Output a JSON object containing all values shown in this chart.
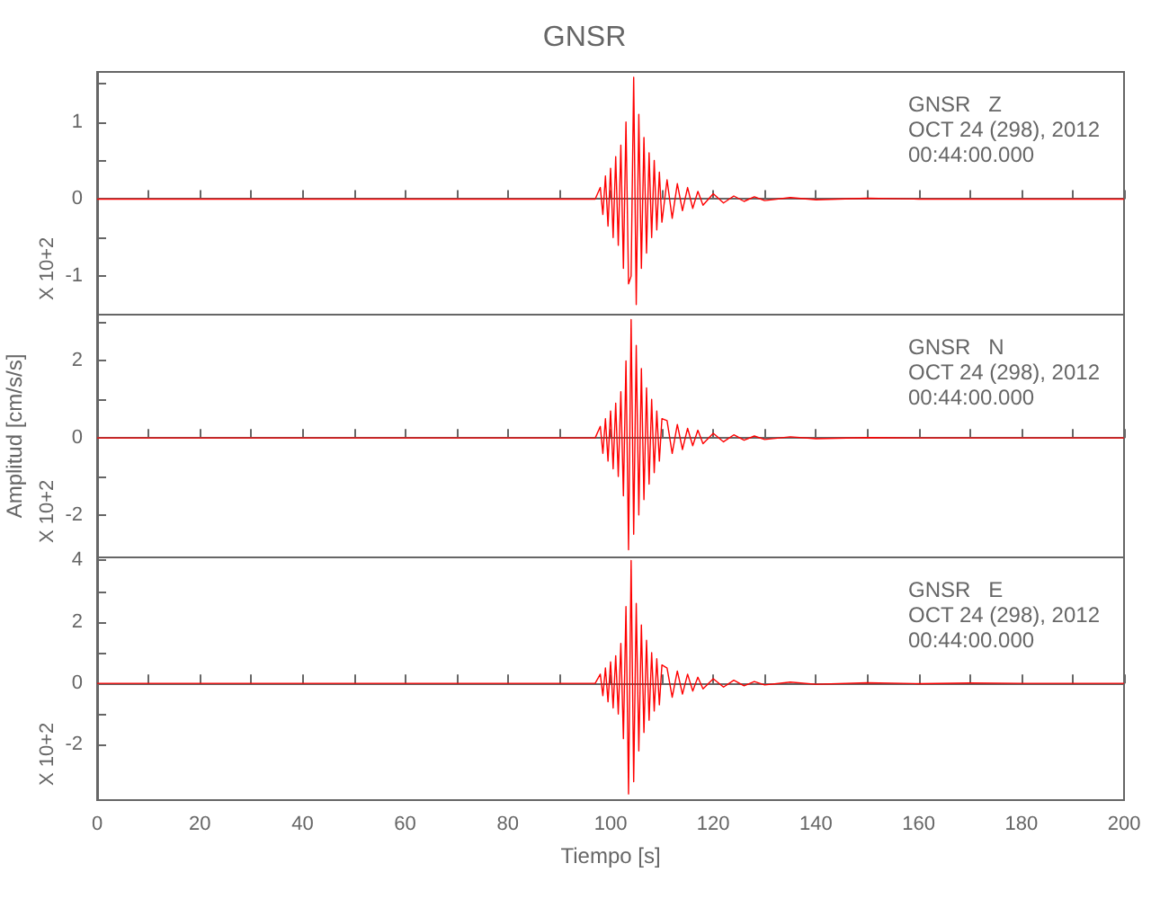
{
  "chart_data": [
    {
      "type": "line",
      "title": "GNSR",
      "annotations": [
        "X 10+2",
        "GNSR   Z",
        "OCT 24 (298), 2012",
        "00:44:00.000"
      ],
      "tick_labels": "y",
      "xlim": [
        0,
        200
      ],
      "xticks": [
        0,
        {
          "value": 10,
          "label": null
        },
        20,
        {
          "value": 30,
          "label": null
        },
        40,
        {
          "value": 50,
          "label": null
        },
        60,
        {
          "value": 70,
          "label": null
        },
        80,
        {
          "value": 90,
          "label": null
        },
        100,
        {
          "value": 110,
          "label": null
        },
        120,
        {
          "value": 130,
          "label": null
        },
        140,
        {
          "value": 150,
          "label": null
        },
        160,
        {
          "value": 170,
          "label": null
        },
        180,
        {
          "value": 190,
          "label": null
        },
        200
      ],
      "ylim": [
        -1.5,
        1.65
      ],
      "yticks": [
        -1,
        {
          "value": -0.5,
          "label": null
        },
        0,
        {
          "value": 0.5,
          "label": null
        },
        1,
        {
          "value": 1.5,
          "label": null
        }
      ],
      "x": [
        0,
        50,
        97,
        98,
        98.5,
        99,
        99.5,
        100,
        100.5,
        101,
        101.5,
        102,
        102.5,
        103,
        103.5,
        104,
        104.5,
        105,
        105.5,
        106,
        106.5,
        107,
        107.5,
        108,
        108.5,
        109,
        109.5,
        110,
        111,
        112,
        113,
        114,
        115,
        116,
        117,
        118,
        120,
        122,
        124,
        126,
        128,
        130,
        135,
        140,
        150,
        160,
        170,
        180,
        190,
        200
      ],
      "series": [
        {
          "color": "#ff0000",
          "values": [
            0,
            0,
            0,
            0.15,
            -0.2,
            0.3,
            -0.35,
            0.4,
            -0.5,
            0.55,
            -0.6,
            0.7,
            -0.9,
            1.0,
            -1.1,
            -1.0,
            1.58,
            -1.37,
            1.1,
            -0.9,
            0.8,
            -0.7,
            0.6,
            -0.5,
            0.5,
            -0.4,
            0.35,
            -0.3,
            0.25,
            -0.25,
            0.2,
            -0.15,
            0.15,
            -0.12,
            0.1,
            -0.08,
            0.07,
            -0.05,
            0.04,
            -0.03,
            0.03,
            -0.02,
            0.02,
            -0.01,
            0.01,
            0,
            0,
            0,
            0,
            0
          ]
        }
      ]
    },
    {
      "type": "line",
      "ylabel": "Amplitud [cm/s/s]",
      "annotations": [
        "X 10+2",
        "GNSR   N",
        "OCT 24 (298), 2012",
        "00:44:00.000"
      ],
      "tick_labels": "y",
      "xlim": [
        0,
        200
      ],
      "xticks": [
        0,
        {
          "value": 10,
          "label": null
        },
        20,
        {
          "value": 30,
          "label": null
        },
        40,
        {
          "value": 50,
          "label": null
        },
        60,
        {
          "value": 70,
          "label": null
        },
        80,
        {
          "value": 90,
          "label": null
        },
        100,
        {
          "value": 110,
          "label": null
        },
        120,
        {
          "value": 130,
          "label": null
        },
        140,
        {
          "value": 150,
          "label": null
        },
        160,
        {
          "value": 170,
          "label": null
        },
        180,
        {
          "value": 190,
          "label": null
        },
        200
      ],
      "ylim": [
        -3.1,
        3.2
      ],
      "yticks": [
        -2,
        {
          "value": -1,
          "label": null
        },
        0,
        {
          "value": 1,
          "label": null
        },
        2,
        {
          "value": 3,
          "label": null
        }
      ],
      "x": [
        0,
        50,
        97,
        98,
        98.5,
        99,
        99.5,
        100,
        100.5,
        101,
        101.5,
        102,
        102.5,
        103,
        103.5,
        104,
        104.5,
        105,
        105.5,
        106,
        106.5,
        107,
        107.5,
        108,
        108.5,
        109,
        109.5,
        110,
        111,
        112,
        113,
        114,
        115,
        116,
        117,
        118,
        120,
        122,
        124,
        126,
        128,
        130,
        135,
        140,
        150,
        160,
        170,
        180,
        190,
        200
      ],
      "series": [
        {
          "color": "#ff0000",
          "values": [
            0,
            0,
            0,
            0.3,
            -0.4,
            0.5,
            -0.6,
            0.7,
            -0.8,
            0.9,
            -1.0,
            1.2,
            -1.5,
            2.0,
            -2.9,
            3.07,
            -2.5,
            2.4,
            -2.0,
            1.8,
            -1.6,
            1.3,
            -1.2,
            1.0,
            -0.9,
            0.7,
            -0.6,
            0.5,
            0.45,
            -0.4,
            0.35,
            -0.3,
            0.25,
            -0.2,
            0.2,
            -0.15,
            0.12,
            -0.1,
            0.08,
            -0.06,
            0.05,
            -0.04,
            0.03,
            -0.02,
            0.01,
            0,
            0,
            0,
            0,
            0
          ]
        }
      ]
    },
    {
      "type": "line",
      "xlabel": "Tiempo [s]",
      "annotations": [
        "X 10+2",
        "GNSR   E",
        "OCT 24 (298), 2012",
        "00:44:00.000"
      ],
      "xlim": [
        0,
        200
      ],
      "xticks": [
        0,
        {
          "value": 10,
          "label": null
        },
        20,
        {
          "value": 30,
          "label": null
        },
        40,
        {
          "value": 50,
          "label": null
        },
        60,
        {
          "value": 70,
          "label": null
        },
        80,
        {
          "value": 90,
          "label": null
        },
        100,
        {
          "value": 110,
          "label": null
        },
        120,
        {
          "value": 130,
          "label": null
        },
        140,
        {
          "value": 150,
          "label": null
        },
        160,
        {
          "value": 170,
          "label": null
        },
        180,
        {
          "value": 190,
          "label": null
        },
        200
      ],
      "ylim": [
        -3.8,
        4.1
      ],
      "yticks": [
        -2,
        {
          "value": -1,
          "label": null
        },
        0,
        {
          "value": 1,
          "label": null
        },
        2,
        {
          "value": 3,
          "label": null
        },
        4
      ],
      "x": [
        0,
        50,
        97,
        98,
        98.5,
        99,
        99.5,
        100,
        100.5,
        101,
        101.5,
        102,
        102.5,
        103,
        103.5,
        104,
        104.5,
        105,
        105.5,
        106,
        106.5,
        107,
        107.5,
        108,
        108.5,
        109,
        109.5,
        110,
        111,
        112,
        113,
        114,
        115,
        116,
        117,
        118,
        120,
        122,
        124,
        126,
        128,
        130,
        135,
        140,
        150,
        160,
        170,
        180,
        190,
        200
      ],
      "series": [
        {
          "color": "#ff0000",
          "values": [
            0,
            0,
            0,
            0.3,
            -0.4,
            0.5,
            -0.6,
            0.7,
            -0.8,
            0.9,
            -1.0,
            1.3,
            -1.8,
            2.5,
            -3.6,
            4.0,
            -3.2,
            2.6,
            -2.2,
            1.9,
            -1.6,
            1.4,
            -1.2,
            1.0,
            -0.9,
            0.8,
            -0.7,
            0.6,
            0.5,
            -0.45,
            0.4,
            -0.35,
            0.3,
            -0.25,
            0.2,
            -0.18,
            0.15,
            -0.12,
            0.1,
            -0.08,
            0.06,
            -0.05,
            0.04,
            -0.03,
            0.02,
            -0.01,
            0.01,
            0,
            0,
            0
          ]
        }
      ]
    }
  ]
}
